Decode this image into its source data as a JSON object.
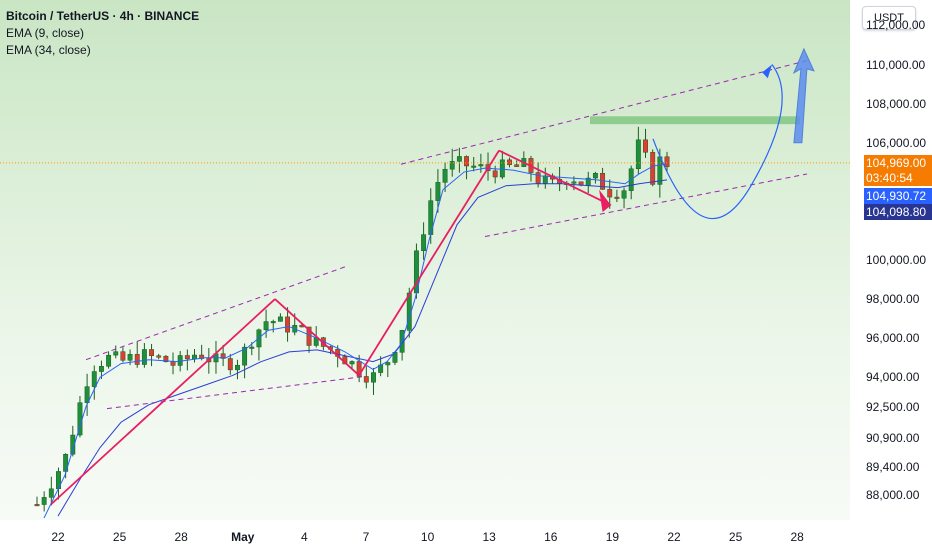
{
  "legend": {
    "title": "Bitcoin / TetherUS · 4h · BINANCE",
    "ema9": "EMA (9, close)",
    "ema34": "EMA (34, close)"
  },
  "currency_button": "USDT",
  "colors": {
    "up": "#26a69a",
    "down": "#ef5350",
    "candle_green": "#1e8f3a",
    "candle_red": "#e03c31",
    "ema9": "#2962ff",
    "ema34": "#2a3ed6",
    "pattern": "#e91e63",
    "channel": "#9c27b0",
    "projection": "#2962ff",
    "target_zone": "#81c784",
    "price_line": "#ff9800"
  },
  "price_badges": {
    "last": "104,969.00",
    "countdown": "03:40:54",
    "ema9_value": "104,930.72",
    "ema34_value": "104,098.80"
  },
  "chart_data": {
    "type": "candlestick",
    "title": "Bitcoin / TetherUS · 4h · BINANCE",
    "y_tick_labels": [
      "112,000.00",
      "110,000.00",
      "108,000.00",
      "106,000.00",
      "100,000.00",
      "98,000.00",
      "96,000.00",
      "94,000.00",
      "92,500.00",
      "90,900.00",
      "89,400.00",
      "88,000.00"
    ],
    "y_ticks": [
      112000,
      110000,
      108000,
      106000,
      100000,
      98000,
      96000,
      94000,
      92500,
      90900,
      89400,
      88000
    ],
    "x_tick_labels": [
      "22",
      "25",
      "28",
      "May",
      "4",
      "7",
      "10",
      "13",
      "16",
      "19",
      "22",
      "25",
      "28"
    ],
    "ylim": [
      86700,
      113300
    ],
    "last_price": 104969,
    "ema9_last": 104930.72,
    "ema34_last": 104098.8,
    "price_path": [
      [
        0,
        87500
      ],
      [
        4,
        89800
      ],
      [
        7,
        93800
      ],
      [
        8,
        94600
      ],
      [
        10,
        95000
      ],
      [
        12,
        94800
      ],
      [
        15,
        95100
      ],
      [
        18,
        94900
      ],
      [
        20,
        94600
      ],
      [
        23,
        95300
      ],
      [
        26,
        94700
      ],
      [
        29,
        94900
      ],
      [
        31,
        96200
      ],
      [
        33,
        97000
      ],
      [
        35,
        96700
      ],
      [
        37,
        96500
      ],
      [
        40,
        95700
      ],
      [
        43,
        95300
      ],
      [
        46,
        94400
      ],
      [
        48,
        94000
      ],
      [
        50,
        94800
      ],
      [
        52,
        96300
      ],
      [
        54,
        99800
      ],
      [
        56,
        102800
      ],
      [
        58,
        104700
      ],
      [
        61,
        104900
      ],
      [
        64,
        104600
      ],
      [
        67,
        104700
      ],
      [
        70,
        104800
      ],
      [
        72,
        104000
      ],
      [
        74,
        103800
      ],
      [
        76,
        104400
      ],
      [
        78,
        103900
      ],
      [
        80,
        104100
      ],
      [
        82,
        103500
      ],
      [
        84,
        103700
      ],
      [
        86,
        105900
      ],
      [
        88,
        104200
      ],
      [
        89,
        105100
      ],
      [
        90,
        104969
      ]
    ],
    "ema9_path": [
      [
        1,
        86800
      ],
      [
        4,
        89000
      ],
      [
        7,
        92500
      ],
      [
        9,
        94000
      ],
      [
        12,
        94700
      ],
      [
        16,
        94900
      ],
      [
        20,
        94800
      ],
      [
        24,
        95000
      ],
      [
        27,
        95000
      ],
      [
        30,
        95500
      ],
      [
        33,
        96400
      ],
      [
        36,
        96600
      ],
      [
        40,
        96000
      ],
      [
        44,
        95300
      ],
      [
        48,
        94400
      ],
      [
        50,
        94800
      ],
      [
        52,
        95700
      ],
      [
        54,
        98000
      ],
      [
        56,
        101000
      ],
      [
        58,
        103600
      ],
      [
        61,
        104500
      ],
      [
        64,
        104700
      ],
      [
        68,
        104600
      ],
      [
        72,
        104300
      ],
      [
        76,
        104200
      ],
      [
        80,
        104100
      ],
      [
        84,
        103900
      ],
      [
        86,
        104400
      ],
      [
        88,
        104800
      ],
      [
        90,
        104930.72
      ]
    ],
    "ema34_path": [
      [
        3,
        86900
      ],
      [
        6,
        88700
      ],
      [
        9,
        90400
      ],
      [
        12,
        91700
      ],
      [
        16,
        92600
      ],
      [
        20,
        93100
      ],
      [
        24,
        93600
      ],
      [
        28,
        94100
      ],
      [
        32,
        94800
      ],
      [
        36,
        95300
      ],
      [
        40,
        95400
      ],
      [
        44,
        95100
      ],
      [
        48,
        94800
      ],
      [
        51,
        95200
      ],
      [
        54,
        96600
      ],
      [
        57,
        99200
      ],
      [
        60,
        101800
      ],
      [
        63,
        103200
      ],
      [
        67,
        103800
      ],
      [
        71,
        103900
      ],
      [
        75,
        103900
      ],
      [
        79,
        103800
      ],
      [
        83,
        103700
      ],
      [
        86,
        103900
      ],
      [
        90,
        104098.8
      ]
    ]
  }
}
